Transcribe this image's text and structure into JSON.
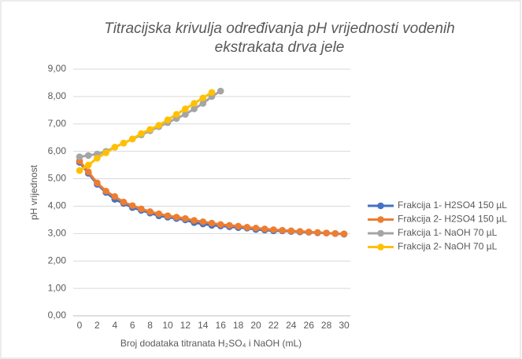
{
  "chart_data": {
    "type": "line",
    "title": [
      "Titracijska krivulja određivanja pH vrijednosti vodenih",
      "ekstrakata drva jele"
    ],
    "x_label": "Broj dodataka titranata H₂SO₄ i NaOH (mL)",
    "y_label": "pH vrijednost",
    "x": [
      0,
      1,
      2,
      3,
      4,
      5,
      6,
      7,
      8,
      9,
      10,
      11,
      12,
      13,
      14,
      15,
      16,
      17,
      18,
      19,
      20,
      21,
      22,
      23,
      24,
      25,
      26,
      27,
      28,
      29,
      30
    ],
    "xlim": [
      0,
      30
    ],
    "xticks": [
      0,
      2,
      4,
      6,
      8,
      10,
      12,
      14,
      16,
      18,
      20,
      22,
      24,
      26,
      28,
      30
    ],
    "ylim": [
      0,
      9
    ],
    "yticks": [
      {
        "value": 0,
        "label": "0,00"
      },
      {
        "value": 1,
        "label": "1,00"
      },
      {
        "value": 2,
        "label": "2,00"
      },
      {
        "value": 3,
        "label": "3,00"
      },
      {
        "value": 4,
        "label": "4,00"
      },
      {
        "value": 5,
        "label": "5,00"
      },
      {
        "value": 6,
        "label": "6,00"
      },
      {
        "value": 7,
        "label": "7,00"
      },
      {
        "value": 8,
        "label": "8,00"
      },
      {
        "value": 9,
        "label": "9,00"
      }
    ],
    "grid": true,
    "legend": "right",
    "series": [
      {
        "name": "Frakcija 1- H2SO4 150 µL",
        "color": "#4472c4",
        "values": [
          5.6,
          5.2,
          4.8,
          4.5,
          4.25,
          4.1,
          3.95,
          3.85,
          3.75,
          3.65,
          3.6,
          3.55,
          3.5,
          3.4,
          3.35,
          3.3,
          3.28,
          3.25,
          3.22,
          3.2,
          3.15,
          3.13,
          3.1,
          3.1,
          3.08,
          3.06,
          3.05,
          3.03,
          3.02,
          3.0,
          2.98
        ]
      },
      {
        "name": "Frakcija 2- H2SO4 150 µL",
        "color": "#ed7d31",
        "values": [
          5.65,
          5.25,
          4.85,
          4.55,
          4.35,
          4.15,
          4.02,
          3.9,
          3.8,
          3.72,
          3.65,
          3.6,
          3.55,
          3.48,
          3.43,
          3.38,
          3.33,
          3.3,
          3.27,
          3.23,
          3.2,
          3.17,
          3.14,
          3.12,
          3.1,
          3.08,
          3.06,
          3.04,
          3.02,
          3.0,
          2.99
        ]
      },
      {
        "name": "Frakcija 1- NaOH 70 µL",
        "color": "#a5a5a5",
        "values": [
          5.8,
          5.85,
          5.9,
          6.0,
          6.15,
          6.3,
          6.45,
          6.6,
          6.75,
          6.9,
          7.05,
          7.2,
          7.35,
          7.55,
          7.75,
          8.0,
          8.2,
          null,
          null,
          null,
          null,
          null,
          null,
          null,
          null,
          null,
          null,
          null,
          null,
          null,
          null
        ]
      },
      {
        "name": "Frakcija 2- NaOH 70 µL",
        "color": "#ffc000",
        "values": [
          5.3,
          5.5,
          5.75,
          5.95,
          6.15,
          6.3,
          6.45,
          6.65,
          6.8,
          6.95,
          7.15,
          7.35,
          7.55,
          7.75,
          7.95,
          8.15,
          null,
          null,
          null,
          null,
          null,
          null,
          null,
          null,
          null,
          null,
          null,
          null,
          null,
          null,
          null
        ]
      }
    ]
  }
}
